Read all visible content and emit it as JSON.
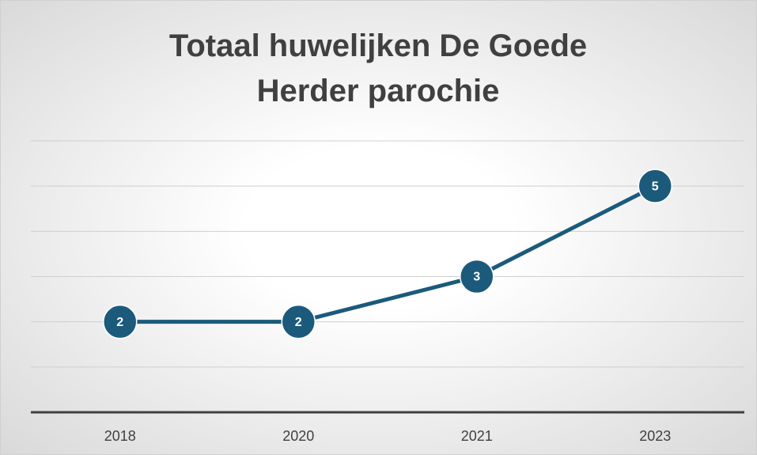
{
  "chart_data": {
    "type": "line",
    "title": "Totaal huwelijken De Goede Herder parochie",
    "categories": [
      "2018",
      "2020",
      "2021",
      "2023"
    ],
    "values": [
      2,
      2,
      3,
      5
    ],
    "color": "#1b5a7b",
    "ylim": [
      0,
      6
    ],
    "yticks": [
      0,
      1,
      2,
      3,
      4,
      5,
      6
    ],
    "grid": true
  }
}
